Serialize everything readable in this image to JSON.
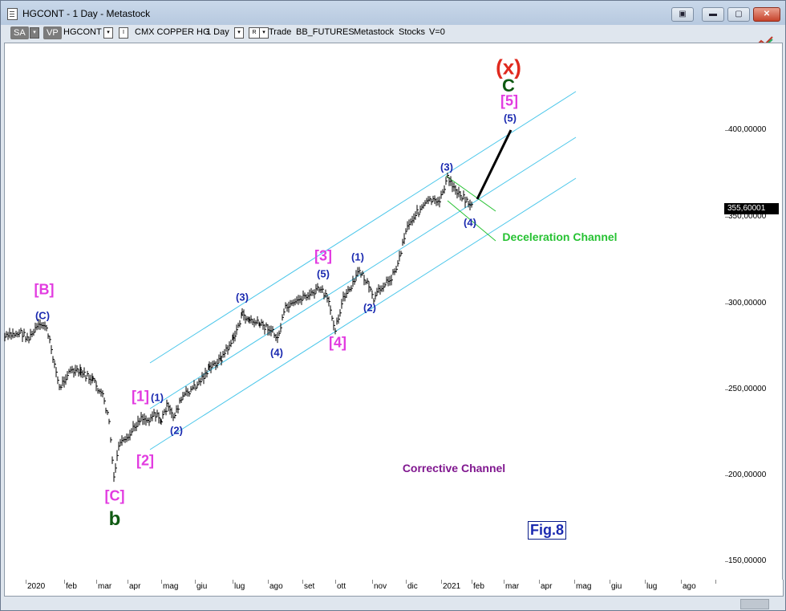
{
  "window": {
    "title": "HGCONT - 1 Day - Metastock",
    "buttons": [
      "▣",
      "▬",
      "▢",
      "✕"
    ]
  },
  "toolbar": {
    "sa_label": "SA",
    "vp_label": "VP",
    "symbol": "HGCONT",
    "interval_label": "I",
    "security_name": "CMX COPPER HG",
    "period": "1 Day",
    "r_label": "R",
    "trade_label": "Trade",
    "feed": "BB_FUTURES",
    "source": "Metastock",
    "mode": "Stocks",
    "volume_label": "V=0",
    "dropdown_glyph": "▾"
  },
  "y_axis": {
    "labels": [
      "400,00000",
      "350,00000",
      "300,00000",
      "250,00000",
      "200,00000",
      "150,00000"
    ],
    "last_price": "355,60001"
  },
  "x_axis": {
    "labels": [
      "2020",
      "feb",
      "mar",
      "apr",
      "mag",
      "giu",
      "lug",
      "ago",
      "set",
      "ott",
      "nov",
      "dic",
      "2021",
      "feb",
      "mar",
      "apr",
      "mag",
      "giu",
      "lug",
      "ago"
    ]
  },
  "annotations": {
    "x_label": "(x)",
    "c_label": "C",
    "five_bracket": "[5]",
    "five_circle": "(5)",
    "three_top": "(3)",
    "four_right": "(4)",
    "deceleration": "Deceleration Channel",
    "one_mid": "(1)",
    "three_bracket": "[3]",
    "five_mid": "(5)",
    "two_mid": "(2)",
    "four_bracket": "[4]",
    "three_left": "(3)",
    "four_left": "(4)",
    "b_bracket": "[B]",
    "c_circle": "(C)",
    "one_bracket": "[1]",
    "one_circle": "(1)",
    "two_circle": "(2)",
    "two_bracket": "[2]",
    "c_bracket": "[C]",
    "b_small": "b",
    "corrective": "Corrective Channel",
    "fig": "Fig.8"
  },
  "colors": {
    "channel": "#49c6ea",
    "deceleration": "#27c233",
    "magenta": "#e23be0",
    "blue": "#1b2ab0",
    "red": "#e02a1f",
    "darkgreen": "#0f5a12",
    "purple": "#80178f"
  },
  "icons": [
    "app-icon",
    "restore-icon",
    "minimize-icon",
    "maximize-icon",
    "close-icon",
    "trend-tool-icon"
  ]
}
